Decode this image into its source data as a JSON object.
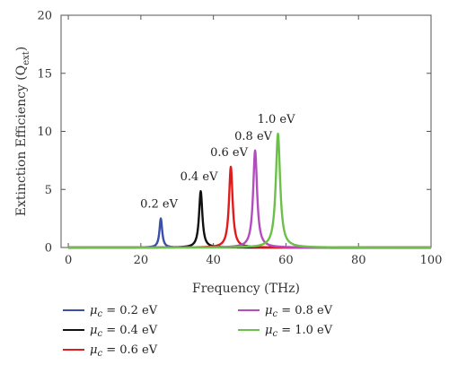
{
  "chart_data": {
    "type": "line",
    "xlabel": "Frequency (THz)",
    "ylabel": "Extinction Efficiency (Q",
    "ylabel_sub": "ext",
    "ylabel_close": ")",
    "xlim": [
      -2,
      100
    ],
    "ylim": [
      0,
      20
    ],
    "xticks": [
      0,
      20,
      40,
      60,
      80,
      100
    ],
    "yticks": [
      0,
      5,
      10,
      15,
      20
    ],
    "grid": false,
    "legend_position": "bottom",
    "series": [
      {
        "name": "0.2 eV",
        "color": "#3a4fa8",
        "peak_x": 25.5,
        "peak_y": 2.5,
        "width": 0.45
      },
      {
        "name": "0.4 eV",
        "color": "#111111",
        "peak_x": 36.5,
        "peak_y": 4.85,
        "width": 0.55
      },
      {
        "name": "0.6 eV",
        "color": "#e01b1b",
        "peak_x": 44.8,
        "peak_y": 6.95,
        "width": 0.6
      },
      {
        "name": "0.8 eV",
        "color": "#b44cc0",
        "peak_x": 51.5,
        "peak_y": 8.35,
        "width": 0.65
      },
      {
        "name": "1.0 eV",
        "color": "#6cc04a",
        "peak_x": 57.8,
        "peak_y": 9.8,
        "width": 0.72
      }
    ],
    "legend": [
      {
        "sym": "μ",
        "sub": "c",
        "text": " = 0.2 eV",
        "color": "#3a4fa8"
      },
      {
        "sym": "μ",
        "sub": "c",
        "text": " = 0.4 eV",
        "color": "#111111"
      },
      {
        "sym": "μ",
        "sub": "c",
        "text": " = 0.6 eV",
        "color": "#e01b1b"
      },
      {
        "sym": "μ",
        "sub": "c",
        "text": " = 0.8 eV",
        "color": "#b44cc0"
      },
      {
        "sym": "μ",
        "sub": "c",
        "text": " = 1.0 eV",
        "color": "#6cc04a"
      }
    ]
  }
}
